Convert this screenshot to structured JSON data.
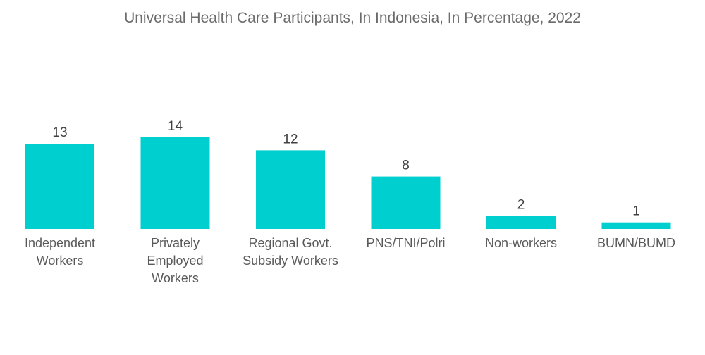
{
  "chart_data": {
    "type": "bar",
    "title": "Universal Health Care Participants, In Indonesia, In Percentage, 2022",
    "categories": [
      [
        "Independent",
        "Workers"
      ],
      [
        "Privately",
        "Employed",
        "Workers"
      ],
      [
        "Regional Govt.",
        "Subsidy Workers"
      ],
      [
        "PNS/TNI/Polri"
      ],
      [
        "Non-workers"
      ],
      [
        "BUMN/BUMD"
      ]
    ],
    "values": [
      13,
      14,
      12,
      8,
      2,
      1
    ],
    "xlabel": "",
    "ylabel": "",
    "ylim": [
      0,
      14
    ],
    "grid": false,
    "bar_color": "#00cfd0"
  }
}
